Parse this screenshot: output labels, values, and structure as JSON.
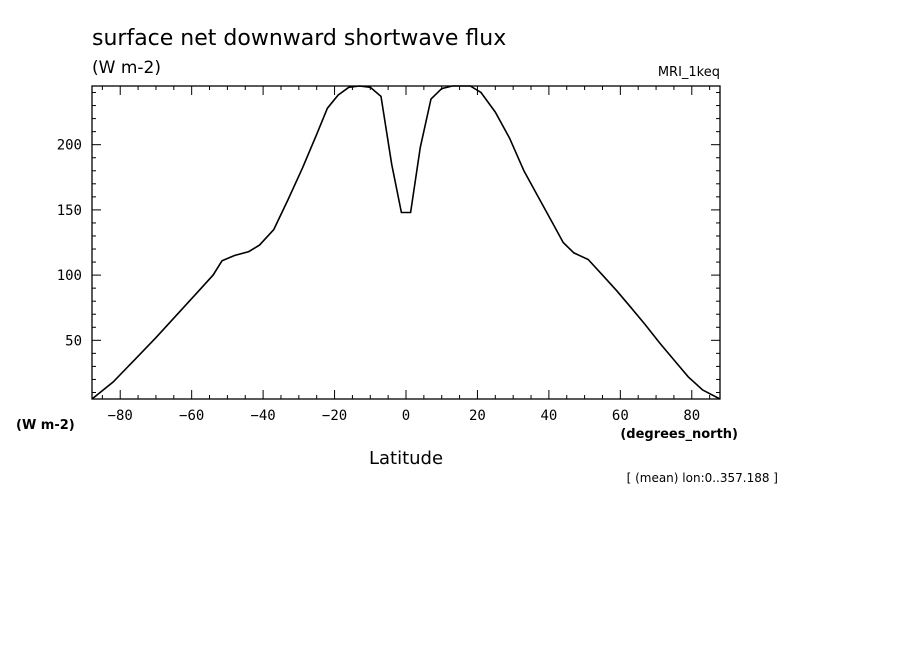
{
  "chart_data": {
    "type": "line",
    "title": "surface net downward shortwave flux",
    "units": "(W m-2)",
    "model_label": "MRI_1keq",
    "ylabel": "(W m-2)",
    "xlabel": "Latitude",
    "x_units": "(degrees_north)",
    "footnote": "[ (mean) lon:0..357.188 ]",
    "xlim": [
      -87.9,
      87.9
    ],
    "ylim": [
      5,
      245
    ],
    "x_ticks": [
      -80,
      -60,
      -40,
      -20,
      0,
      20,
      40,
      60,
      80
    ],
    "y_ticks": [
      50,
      100,
      150,
      200
    ],
    "grid": false,
    "series": [
      {
        "x": [
          -87.9,
          -82,
          -76,
          -70,
          -64,
          -58,
          -54,
          -51.5,
          -48,
          -44,
          -41,
          -37,
          -33,
          -29,
          -25,
          -22,
          -19,
          -16,
          -13,
          -10,
          -7,
          -4,
          -1.3,
          1.3,
          4,
          7,
          10,
          13,
          15.5,
          18,
          21,
          25,
          29,
          33,
          37,
          41,
          44,
          47,
          51,
          55,
          59,
          63,
          67,
          71,
          75,
          79,
          83,
          87.9
        ],
        "y": [
          5,
          18,
          35,
          52,
          70,
          88,
          100,
          111,
          115,
          118,
          123,
          135,
          158,
          182,
          208,
          228,
          238,
          244,
          245,
          244,
          237,
          185,
          148,
          148,
          198,
          235,
          243,
          245,
          245,
          245,
          240,
          225,
          205,
          180,
          160,
          140,
          125,
          117,
          112,
          100,
          88,
          75,
          62,
          48,
          35,
          22,
          12,
          5
        ]
      }
    ]
  }
}
